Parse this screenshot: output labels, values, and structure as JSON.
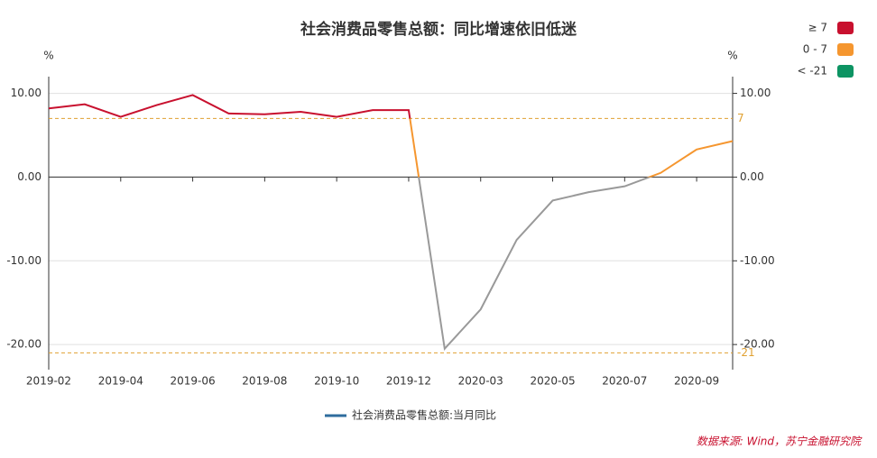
{
  "chart_data": {
    "type": "line",
    "title": "社会消费品零售总额：同比增速依旧低迷",
    "y_unit": "%",
    "y2_unit": "%",
    "categories": [
      "2019-02",
      null,
      "2019-04",
      null,
      "2019-06",
      null,
      "2019-08",
      null,
      "2019-10",
      null,
      "2019-12",
      null,
      "2020-03",
      null,
      "2020-05",
      null,
      "2020-07",
      null,
      "2020-09",
      null
    ],
    "series": [
      {
        "name": "社会消费品零售总额:当月同比",
        "color": "#2e6c9e",
        "values": [
          8.2,
          8.7,
          7.2,
          8.6,
          9.8,
          7.6,
          7.5,
          7.8,
          7.2,
          8.0,
          8.0,
          -20.5,
          -15.8,
          -7.5,
          -2.8,
          -1.8,
          -1.1,
          0.5,
          3.3,
          4.3
        ]
      }
    ],
    "ylim": [
      -23,
      12
    ],
    "yticks": [
      {
        "value": 10,
        "label": "10.00"
      },
      {
        "value": 0,
        "label": "0.00"
      },
      {
        "value": -10,
        "label": "-10.00"
      },
      {
        "value": -20,
        "label": "-20.00"
      }
    ],
    "y2lim": [
      -23,
      12
    ],
    "y2ticks": [
      {
        "value": 10,
        "label": "10.00"
      },
      {
        "value": 0,
        "label": "0.00"
      },
      {
        "value": -10,
        "label": "-10.00"
      },
      {
        "value": -20,
        "label": "-20.00"
      }
    ],
    "grid": true,
    "mark_lines": [
      7,
      -21
    ],
    "mark_line_color": "#e0a030",
    "visual_pieces": [
      {
        "label": "≥ 7",
        "min": 7,
        "color": "#c8102e"
      },
      {
        "label": "0 - 7",
        "min": 0,
        "max": 7,
        "color": "#f5962f"
      },
      {
        "label": "< -21",
        "max": -21,
        "color": "#0d9463"
      }
    ],
    "out_of_range_color": "#999999",
    "source": "数据来源: Wind，苏宁金融研究院"
  }
}
